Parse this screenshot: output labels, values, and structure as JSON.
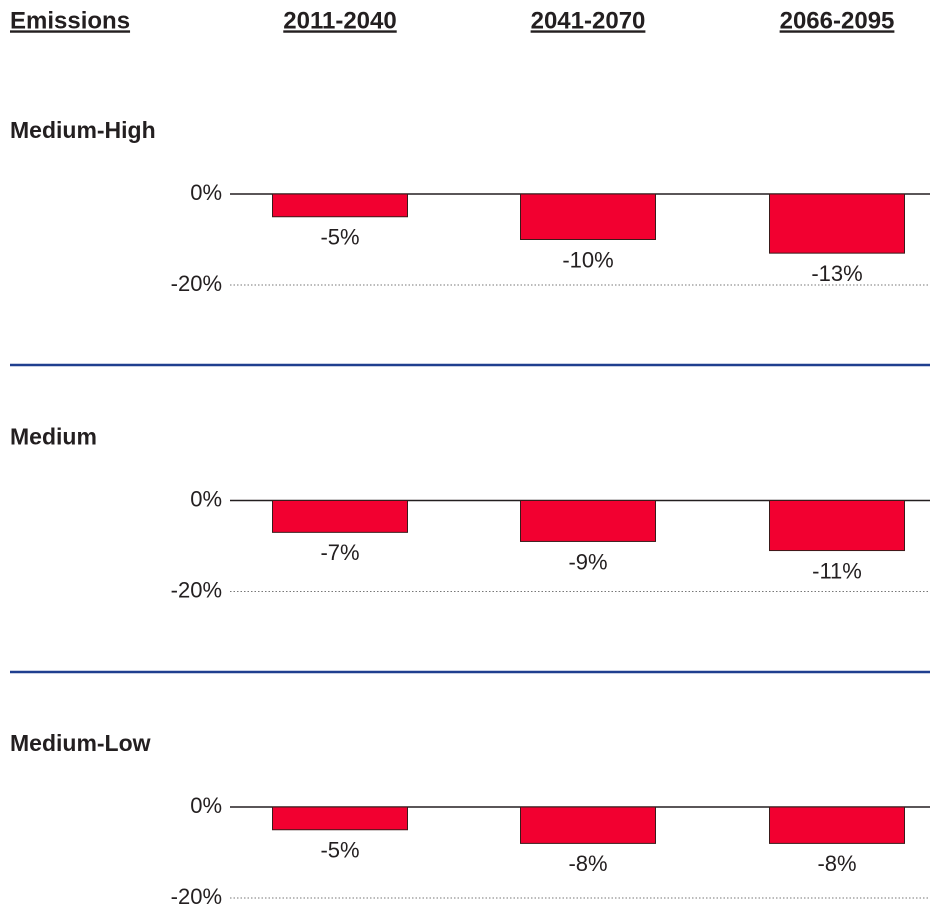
{
  "header": {
    "title": "Emissions",
    "columns": [
      "2011-2040",
      "2041-2070",
      "2066-2095"
    ]
  },
  "chart_data": [
    {
      "type": "bar",
      "title": "Medium-High",
      "values": [
        -5,
        -10,
        -13
      ],
      "value_labels": [
        "-5%",
        "-10%",
        "-13%"
      ],
      "color": "#f20030",
      "ylim": [
        -20,
        0
      ],
      "yticks": [
        {
          "value": 0,
          "label": "0%"
        },
        {
          "value": -20,
          "label": "-20%"
        }
      ],
      "grid": true
    },
    {
      "type": "bar",
      "title": "Medium",
      "values": [
        -7,
        -9,
        -11
      ],
      "value_labels": [
        "-7%",
        "-9%",
        "-11%"
      ],
      "color": "#f20030",
      "ylim": [
        -20,
        0
      ],
      "yticks": [
        {
          "value": 0,
          "label": "0%"
        },
        {
          "value": -20,
          "label": "-20%"
        }
      ],
      "grid": true
    },
    {
      "type": "bar",
      "title": "Medium-Low",
      "values": [
        -5,
        -8,
        -8
      ],
      "value_labels": [
        "-5%",
        "-8%",
        "-8%"
      ],
      "color": "#f20030",
      "ylim": [
        -20,
        0
      ],
      "yticks": [
        {
          "value": 0,
          "label": "0%"
        },
        {
          "value": -20,
          "label": "-20%"
        }
      ],
      "grid": true
    }
  ]
}
